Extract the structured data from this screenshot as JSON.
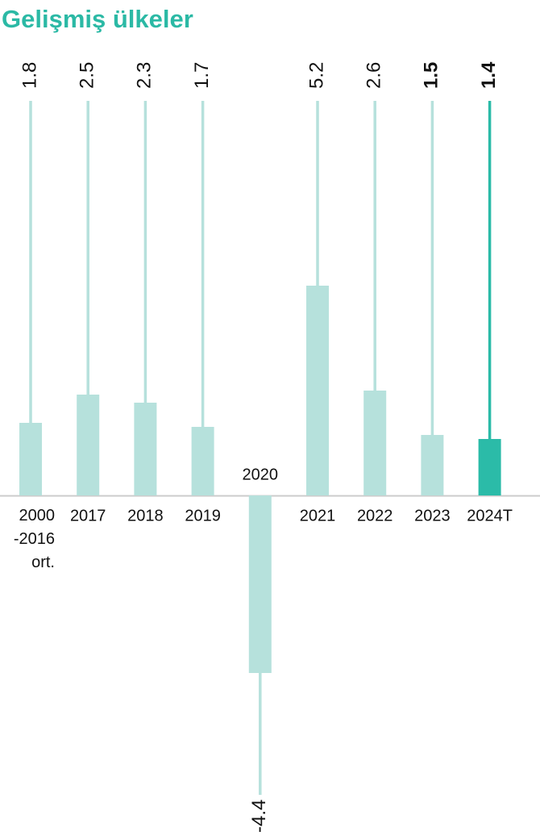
{
  "chart_data": {
    "type": "bar",
    "title": "Gelişmiş ülkeler",
    "categories": [
      "2000\n-2016\nort.",
      "2017",
      "2018",
      "2019",
      "2020",
      "2021",
      "2022",
      "2023",
      "2024T"
    ],
    "values": [
      1.8,
      2.5,
      2.3,
      1.7,
      -4.4,
      5.2,
      2.6,
      1.5,
      1.4
    ],
    "colors": [
      "#b6e1dc",
      "#b6e1dc",
      "#b6e1dc",
      "#b6e1dc",
      "#b6e1dc",
      "#b6e1dc",
      "#b6e1dc",
      "#b6e1dc",
      "#2bbba8"
    ],
    "value_label_colors": [
      "#111111",
      "#111111",
      "#111111",
      "#111111",
      "#111111",
      "#111111",
      "#111111",
      "#2bbba8",
      "#2bbba8"
    ]
  }
}
